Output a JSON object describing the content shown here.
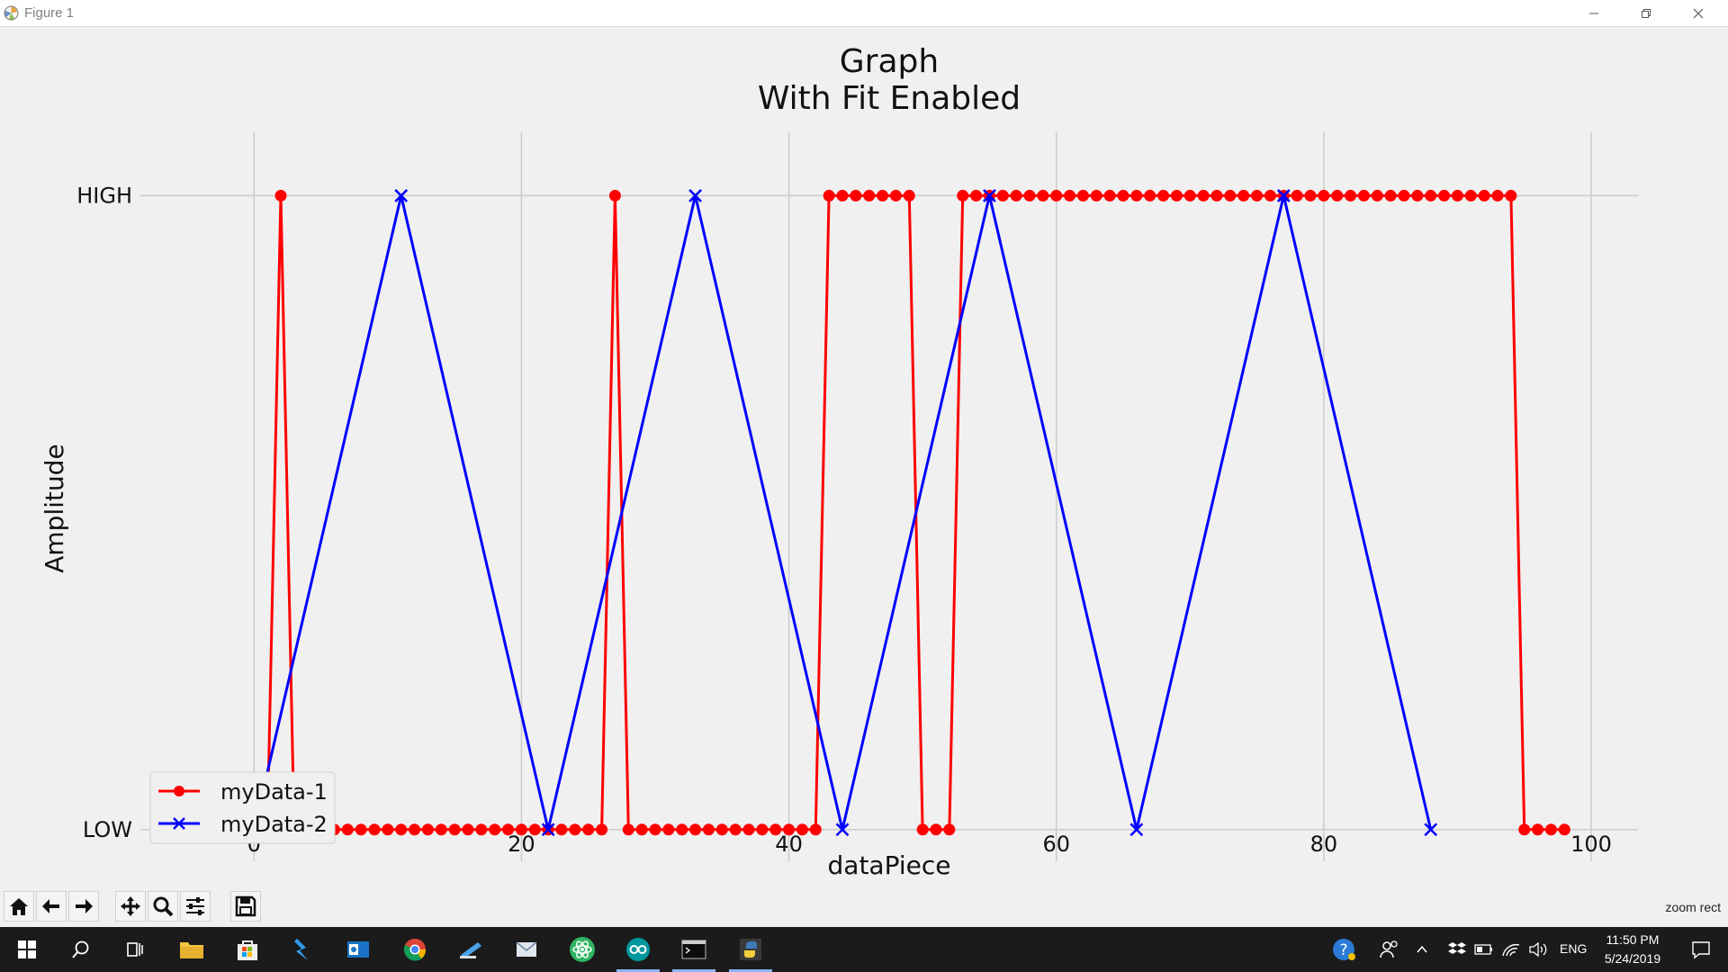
{
  "window": {
    "title": "Figure 1"
  },
  "toolbar": {
    "buttons": [
      "home",
      "back",
      "forward",
      "pan",
      "zoom",
      "configure-subplots",
      "save"
    ],
    "message": "zoom rect"
  },
  "taskbar": {
    "language": "ENG",
    "time": "11:50 PM",
    "date": "5/24/2019"
  },
  "chart_data": {
    "type": "line",
    "title": "Graph",
    "subtitle": "With Fit Enabled",
    "xlabel": "dataPiece",
    "ylabel": "Amplitude",
    "xlim": [
      -8.5,
      103.5
    ],
    "ylim": [
      -0.05,
      1.1
    ],
    "xticks": [
      0,
      20,
      40,
      60,
      80,
      100
    ],
    "ytick_labels": [
      "LOW",
      "HIGH"
    ],
    "yticks": [
      0,
      1
    ],
    "grid": true,
    "legend_position": "lower-left",
    "series": [
      {
        "name": "myData-1",
        "color": "#ff0000",
        "marker": "circle",
        "x": [
          0,
          1,
          2,
          3,
          4,
          5,
          6,
          7,
          8,
          9,
          10,
          11,
          12,
          13,
          14,
          15,
          16,
          17,
          18,
          19,
          20,
          21,
          22,
          23,
          24,
          25,
          26,
          27,
          28,
          29,
          30,
          31,
          32,
          33,
          34,
          35,
          36,
          37,
          38,
          39,
          40,
          41,
          42,
          43,
          44,
          45,
          46,
          47,
          48,
          49,
          50,
          51,
          52,
          53,
          54,
          55,
          56,
          57,
          58,
          59,
          60,
          61,
          62,
          63,
          64,
          65,
          66,
          67,
          68,
          69,
          70,
          71,
          72,
          73,
          74,
          75,
          76,
          77,
          78,
          79,
          80,
          81,
          82,
          83,
          84,
          85,
          86,
          87,
          88,
          89,
          90,
          91,
          92,
          93,
          94,
          95,
          96,
          97,
          98
        ],
        "y": [
          0,
          0,
          1,
          0,
          0,
          0,
          0,
          0,
          0,
          0,
          0,
          0,
          0,
          0,
          0,
          0,
          0,
          0,
          0,
          0,
          0,
          0,
          0,
          0,
          0,
          0,
          0,
          1,
          0,
          0,
          0,
          0,
          0,
          0,
          0,
          0,
          0,
          0,
          0,
          0,
          0,
          0,
          0,
          1,
          1,
          1,
          1,
          1,
          1,
          1,
          0,
          0,
          0,
          1,
          1,
          1,
          1,
          1,
          1,
          1,
          1,
          1,
          1,
          1,
          1,
          1,
          1,
          1,
          1,
          1,
          1,
          1,
          1,
          1,
          1,
          1,
          1,
          1,
          1,
          1,
          1,
          1,
          1,
          1,
          1,
          1,
          1,
          1,
          1,
          1,
          1,
          1,
          1,
          1,
          1,
          0,
          0,
          0,
          0
        ]
      },
      {
        "name": "myData-2",
        "color": "#0000ff",
        "marker": "x",
        "x": [
          0,
          11,
          22,
          33,
          44,
          55,
          66,
          77,
          88
        ],
        "y": [
          0,
          1,
          0,
          1,
          0,
          1,
          0,
          1,
          0
        ]
      }
    ]
  }
}
